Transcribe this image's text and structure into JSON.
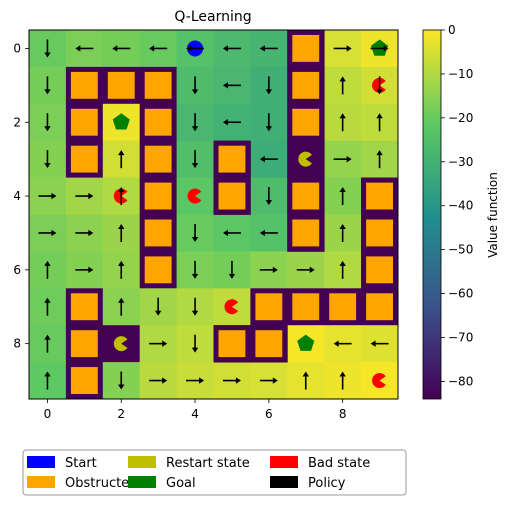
{
  "chart_data": {
    "type": "heatmap",
    "title": "Q-Learning",
    "colorbar": {
      "label": "Value function",
      "ticks": [
        "0",
        "−10",
        "−20",
        "−30",
        "−40",
        "−50",
        "−60",
        "−70",
        "−80"
      ],
      "min": -84,
      "max": 0,
      "colormap": "viridis"
    },
    "x_ticks": [
      "0",
      "2",
      "4",
      "6",
      "8"
    ],
    "y_ticks": [
      "0",
      "2",
      "4",
      "6",
      "8"
    ],
    "grid_size": [
      10,
      10
    ],
    "values": [
      [
        -20,
        -17,
        -18,
        -20,
        -24,
        -27,
        -29,
        -84,
        -5,
        -2
      ],
      [
        -18,
        -84,
        -84,
        -84,
        -26,
        -28,
        -31,
        -84,
        -8,
        -6
      ],
      [
        -17,
        -84,
        -2,
        -84,
        -28,
        -30,
        -31,
        -84,
        -9,
        -8
      ],
      [
        -16,
        -84,
        -6,
        -84,
        -25,
        -84,
        -32,
        -84,
        -14,
        -12
      ],
      [
        -15,
        -12,
        -10,
        -84,
        -22,
        -84,
        -26,
        -84,
        -16,
        -84
      ],
      [
        -17,
        -15,
        -13,
        -84,
        -20,
        -22,
        -24,
        -84,
        -13,
        -84
      ],
      [
        -18,
        -16,
        -14,
        -84,
        -17,
        -18,
        -15,
        -13,
        -10,
        -84
      ],
      [
        -19,
        -84,
        -15,
        -12,
        -10,
        -8,
        -84,
        -84,
        -84,
        -84
      ],
      [
        -20,
        -84,
        -84,
        -10,
        -8,
        -84,
        -84,
        -1,
        -3,
        -4
      ],
      [
        -21,
        -84,
        -16,
        -9,
        -7,
        -6,
        -5,
        -3,
        -2,
        -1
      ]
    ],
    "obstructed": [
      [
        1,
        1
      ],
      [
        1,
        2
      ],
      [
        1,
        3
      ],
      [
        2,
        1
      ],
      [
        2,
        3
      ],
      [
        3,
        1
      ],
      [
        3,
        3
      ],
      [
        3,
        5
      ],
      [
        4,
        3
      ],
      [
        4,
        5
      ],
      [
        5,
        3
      ],
      [
        6,
        3
      ],
      [
        0,
        7
      ],
      [
        1,
        7
      ],
      [
        2,
        7
      ],
      [
        4,
        7
      ],
      [
        4,
        9
      ],
      [
        5,
        7
      ],
      [
        5,
        9
      ],
      [
        6,
        9
      ],
      [
        7,
        1
      ],
      [
        7,
        6
      ],
      [
        7,
        7
      ],
      [
        7,
        8
      ],
      [
        7,
        9
      ],
      [
        8,
        1
      ],
      [
        8,
        5
      ],
      [
        8,
        6
      ],
      [
        9,
        1
      ]
    ],
    "dark_cells": [
      [
        3,
        5
      ],
      [
        4,
        5
      ],
      [
        5,
        7
      ],
      [
        0,
        7
      ],
      [
        1,
        7
      ],
      [
        2,
        7
      ],
      [
        3,
        7
      ],
      [
        4,
        7
      ],
      [
        4,
        9
      ],
      [
        5,
        9
      ],
      [
        6,
        9
      ],
      [
        8,
        5
      ],
      [
        8,
        6
      ]
    ],
    "policy": [
      [
        "down",
        "left",
        "left",
        "left",
        "left",
        "left",
        "left",
        "",
        "right",
        "right"
      ],
      [
        "down",
        "",
        "",
        "",
        "down",
        "left",
        "down",
        "",
        "up",
        "down"
      ],
      [
        "down",
        "",
        "",
        "",
        "down",
        "left",
        "down",
        "",
        "up",
        "up"
      ],
      [
        "down",
        "",
        "up",
        "",
        "down",
        "",
        "left",
        "",
        "right",
        "up"
      ],
      [
        "right",
        "right",
        "up",
        "",
        "",
        "",
        "down",
        "",
        "up",
        ""
      ],
      [
        "right",
        "right",
        "up",
        "",
        "down",
        "left",
        "left",
        "",
        "up",
        ""
      ],
      [
        "up",
        "right",
        "up",
        "",
        "down",
        "down",
        "right",
        "right",
        "up",
        ""
      ],
      [
        "up",
        "",
        "up",
        "down",
        "down",
        "",
        "",
        "",
        "",
        ""
      ],
      [
        "up",
        "",
        "",
        "right",
        "down",
        "",
        "",
        "",
        "left",
        "left"
      ],
      [
        "up",
        "",
        "down",
        "right",
        "right",
        "right",
        "right",
        "up",
        "up",
        ""
      ]
    ],
    "markers": {
      "start": [
        [
          0,
          4
        ]
      ],
      "goal": [
        [
          0,
          9
        ],
        [
          2,
          2
        ],
        [
          8,
          7
        ]
      ],
      "bad": [
        [
          1,
          9
        ],
        [
          4,
          2
        ],
        [
          4,
          4
        ],
        [
          7,
          5
        ],
        [
          9,
          9
        ]
      ],
      "restart": [
        [
          3,
          7
        ],
        [
          8,
          2
        ]
      ]
    },
    "legend": [
      {
        "label": "Start",
        "color": "#0000ff"
      },
      {
        "label": "Obstructed",
        "color": "#ffa500"
      },
      {
        "label": "Restart state",
        "color": "#bfbf00"
      },
      {
        "label": "Goal",
        "color": "#008000"
      },
      {
        "label": "Bad state",
        "color": "#ff0000"
      },
      {
        "label": "Policy",
        "color": "#000000"
      }
    ],
    "legend_position": "bottom"
  }
}
